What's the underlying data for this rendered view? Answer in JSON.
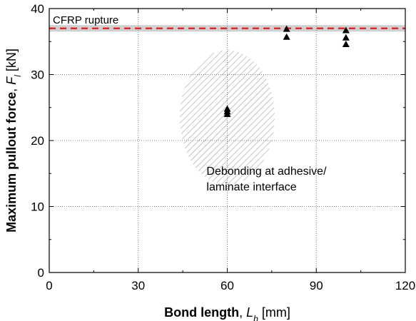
{
  "chart_data": {
    "type": "scatter",
    "title": "",
    "xlabel": {
      "bold": "Bond length",
      "sep": ", ",
      "sym": "L",
      "sub": "b",
      "unit": " [mm]"
    },
    "ylabel": {
      "bold": "Maximum pullout force",
      "sep": ", ",
      "sym": "F",
      "sub": "l",
      "unit": " [kN]"
    },
    "xlim": [
      0,
      120
    ],
    "ylim": [
      0,
      40
    ],
    "xticks": [
      0,
      30,
      60,
      90,
      120
    ],
    "yticks": [
      0,
      10,
      20,
      30,
      40
    ],
    "xtick_labels": [
      "0",
      "30",
      "60",
      "90",
      "120"
    ],
    "ytick_labels": [
      "0",
      "10",
      "20",
      "30",
      "40"
    ],
    "grid": true,
    "grid_style": "dotted",
    "marker": "triangle",
    "marker_color": "#000000",
    "series": [
      {
        "x": [
          60,
          60,
          60,
          80,
          80,
          100,
          100,
          100
        ],
        "y": [
          24.0,
          24.4,
          24.8,
          36.9,
          35.7,
          36.7,
          35.6,
          34.6
        ]
      }
    ],
    "rupture_line": {
      "label": "CFRP rupture",
      "value": 37.0,
      "band": [
        36.5,
        37.5
      ],
      "color": "#e11d1d",
      "band_color": "#d0d0d0"
    },
    "hatched_region": {
      "center": [
        60,
        23.5
      ],
      "radius_x": 16,
      "radius_y": 10.2,
      "color": "#a0a0a0"
    },
    "annotation": {
      "lines": [
        "Debonding at adhesive/",
        "laminate interface"
      ],
      "anchor": [
        53,
        14.8
      ]
    }
  }
}
